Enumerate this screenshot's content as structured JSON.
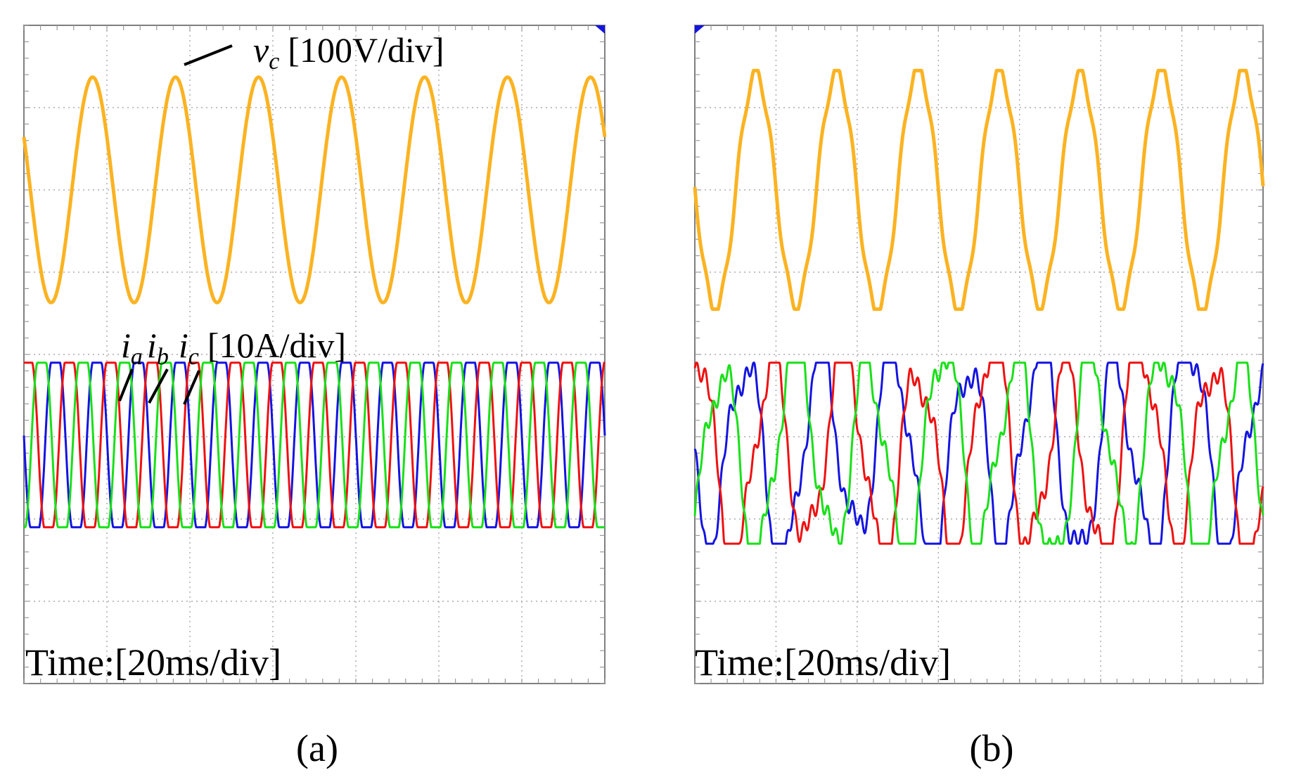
{
  "colors": {
    "vc": "#FBB322",
    "ia": "#1414E0",
    "ib": "#EE1111",
    "ic": "#19E019",
    "grid": "#9a9a9a",
    "frame": "#7f7f7f",
    "marker": "#1414E0"
  },
  "annotations": {
    "voltage_symbol": "v",
    "voltage_sub": "c",
    "voltage_scale": "[100V/div]",
    "current_symbol": "i",
    "current_sub_a": "a",
    "current_sub_b": "b",
    "current_sub_c": "c",
    "current_scale": "[10A/div]"
  },
  "chart_data": [
    {
      "type": "line",
      "panel": "(a)",
      "caption": "(a)",
      "time_label": "Time:[20ms/div]",
      "divisions": {
        "x": 7,
        "y": 8
      },
      "x_range_ms": [
        0,
        140
      ],
      "voltage": {
        "name": "v_c",
        "unit_per_div": "100V/div",
        "center_div": 6.0,
        "amplitude_div": 1.37,
        "frequency_hz": 50,
        "phase_deg": 152
      },
      "currents": {
        "unit_per_div": "10A/div",
        "center_div": 2.9,
        "amplitude_div": 1.0,
        "frequency_hz": 100,
        "shape": "quasi-trapezoidal",
        "series": [
          {
            "name": "i_a",
            "color_key": "ia",
            "phase_deg": 176
          },
          {
            "name": "i_b",
            "color_key": "ib",
            "phase_deg": 56
          },
          {
            "name": "i_c",
            "color_key": "ic",
            "phase_deg": -64
          }
        ]
      }
    },
    {
      "type": "line",
      "panel": "(b)",
      "caption": "(b)",
      "time_label": "Time:[20ms/div]",
      "divisions": {
        "x": 7,
        "y": 8
      },
      "x_range_ms": [
        0,
        140
      ],
      "voltage": {
        "name": "v_c",
        "unit_per_div": "100V/div",
        "center_div": 6.0,
        "amplitude_div": 1.45,
        "frequency_hz": 50,
        "phase_deg": 180
      },
      "currents": {
        "unit_per_div": "10A/div",
        "center_div": 2.8,
        "amplitude_div": 1.1,
        "frequency_hz": 55,
        "shape": "distorted",
        "series": [
          {
            "name": "i_a",
            "color_key": "ia",
            "phase_deg": 200
          },
          {
            "name": "i_b",
            "color_key": "ib",
            "phase_deg": 80
          },
          {
            "name": "i_c",
            "color_key": "ic",
            "phase_deg": -40
          }
        ]
      }
    }
  ]
}
